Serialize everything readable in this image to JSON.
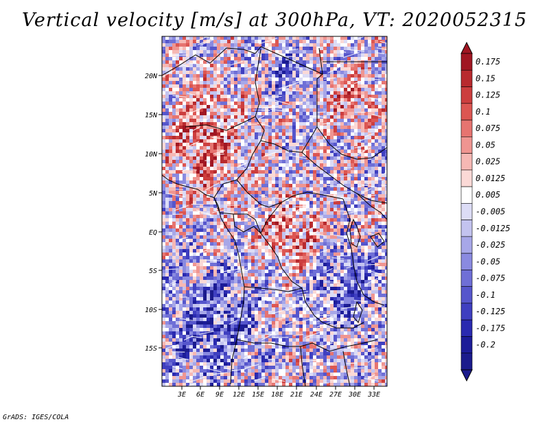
{
  "title": "Vertical velocity [m/s] at 300hPa, VT: 2020052315",
  "map": {
    "variable": "Vertical velocity",
    "units": "m/s",
    "level": "300hPa",
    "valid_time": "2020052315",
    "lat_labels": [
      "20N",
      "15N",
      "10N",
      "5N",
      "EQ",
      "5S",
      "10S",
      "15S"
    ],
    "lon_labels": [
      "3E",
      "6E",
      "9E",
      "12E",
      "15E",
      "18E",
      "21E",
      "24E",
      "27E",
      "30E",
      "33E"
    ],
    "colors": {
      "border": "#000000",
      "background": "#ffffff"
    }
  },
  "colorbar": {
    "labels": [
      "0.175",
      "0.15",
      "0.125",
      "0.1",
      "0.075",
      "0.05",
      "0.025",
      "0.0125",
      "0.005",
      "-0.005",
      "-0.0125",
      "-0.025",
      "-0.05",
      "-0.075",
      "-0.1",
      "-0.125",
      "-0.175",
      "-0.2"
    ],
    "colors": [
      "#a01622",
      "#b82a2e",
      "#cc3e3e",
      "#dc5652",
      "#e67470",
      "#ef9591",
      "#f6b8b4",
      "#fbd9d6",
      "#ffffff",
      "#dcdcf6",
      "#c3c3ef",
      "#a7a7e8",
      "#8a8ae0",
      "#6f6fd6",
      "#5656cc",
      "#3f3fc0",
      "#2a2ab0",
      "#1c1c98",
      "#1b1b8c"
    ]
  },
  "footer": "GrADS: IGES/COLA"
}
